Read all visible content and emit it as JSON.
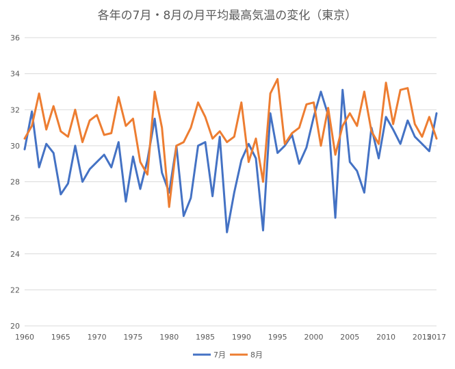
{
  "chart_data": {
    "type": "line",
    "title": "各年の7月・8月の月平均最高気温の変化（東京）",
    "xlabel": "",
    "ylabel": "",
    "ylim": [
      20,
      36
    ],
    "y_ticks": [
      20,
      22,
      24,
      26,
      28,
      30,
      32,
      34,
      36
    ],
    "x_tick_labels": [
      "1960",
      "1965",
      "1970",
      "1975",
      "1980",
      "1985",
      "1990",
      "1995",
      "2000",
      "2005",
      "2010",
      "2015",
      "2017"
    ],
    "x": [
      1960,
      1961,
      1962,
      1963,
      1964,
      1965,
      1966,
      1967,
      1968,
      1969,
      1970,
      1971,
      1972,
      1973,
      1974,
      1975,
      1976,
      1977,
      1978,
      1979,
      1980,
      1981,
      1982,
      1983,
      1984,
      1985,
      1986,
      1987,
      1988,
      1989,
      1990,
      1991,
      1992,
      1993,
      1994,
      1995,
      1996,
      1997,
      1998,
      1999,
      2000,
      2001,
      2002,
      2003,
      2004,
      2005,
      2006,
      2007,
      2008,
      2009,
      2010,
      2011,
      2012,
      2013,
      2014,
      2015,
      2016,
      2017
    ],
    "grid": "horizontal",
    "legend_position": "bottom",
    "series": [
      {
        "name": "7月",
        "color": "#4472c4",
        "values": [
          29.8,
          31.9,
          28.8,
          30.1,
          29.6,
          27.3,
          27.9,
          30.0,
          28.0,
          28.7,
          29.1,
          29.5,
          28.8,
          30.2,
          26.9,
          29.4,
          27.6,
          29.2,
          31.5,
          28.5,
          27.4,
          30.0,
          26.1,
          27.1,
          30.0,
          30.2,
          27.2,
          30.5,
          25.2,
          27.4,
          29.2,
          30.1,
          29.3,
          25.3,
          31.8,
          29.6,
          30.0,
          30.6,
          29.0,
          29.9,
          31.6,
          33.0,
          31.7,
          26.0,
          33.1,
          29.1,
          28.6,
          27.4,
          31.0,
          29.3,
          31.6,
          30.9,
          30.1,
          31.4,
          30.5,
          30.1,
          29.7,
          31.8
        ]
      },
      {
        "name": "8月",
        "color": "#ed7d31",
        "values": [
          30.4,
          31.1,
          32.9,
          30.9,
          32.2,
          30.8,
          30.5,
          32.0,
          30.2,
          31.4,
          31.7,
          30.6,
          30.7,
          32.7,
          31.1,
          31.5,
          29.1,
          28.4,
          33.0,
          31.0,
          26.6,
          30.0,
          30.2,
          31.0,
          32.4,
          31.6,
          30.4,
          30.8,
          30.2,
          30.5,
          32.4,
          29.1,
          30.4,
          28.0,
          32.9,
          33.7,
          30.1,
          30.7,
          31.0,
          32.3,
          32.4,
          30.0,
          32.1,
          29.5,
          31.1,
          31.8,
          31.1,
          33.0,
          30.8,
          30.1,
          33.5,
          31.2,
          33.1,
          33.2,
          31.2,
          30.5,
          31.6,
          30.4
        ]
      }
    ]
  }
}
